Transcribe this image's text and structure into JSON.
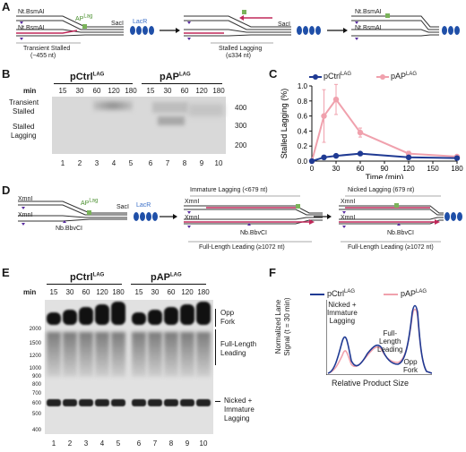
{
  "panelA": {
    "letter": "A",
    "site1": "Nt.BsmAI",
    "site2": "Nt.BsmAI",
    "ap_label": "AP",
    "ap_sup": "Lag",
    "sacI": "SacI",
    "lacR": "LacR",
    "transient": "Transient Stalled",
    "transient_size": "(~455 nt)",
    "sacI2": "SacI",
    "stalled": "Stalled Lagging",
    "stalled_size": "(≤334 nt)",
    "site3": "Nt.BsmAI",
    "site4": "Nt.BsmAI"
  },
  "panelB": {
    "letter": "B",
    "title_ctrl": "pCtrl",
    "title_ap": "pAP",
    "sup": "LAG",
    "min_label": "min",
    "times": [
      "15",
      "30",
      "60",
      "120",
      "180",
      "15",
      "30",
      "60",
      "120",
      "180"
    ],
    "lanes": [
      "1",
      "2",
      "3",
      "4",
      "5",
      "6",
      "7",
      "8",
      "9",
      "10"
    ],
    "left_labels": [
      "Transient",
      "Stalled",
      "Stalled",
      "Lagging"
    ],
    "markers": [
      "400",
      "300",
      "200"
    ]
  },
  "panelC": {
    "letter": "C",
    "legend": [
      "pCtrl",
      "pAP"
    ],
    "legend_sup": "LAG",
    "ylabel": "Stalled Lagging (%)",
    "xlabel": "Time (min)",
    "colors": {
      "ctrl": "#1f3a93",
      "ap": "#f0a1ad"
    }
  },
  "chart_data": {
    "type": "line",
    "title": "",
    "xlabel": "Time (min)",
    "ylabel": "Stalled Lagging (%)",
    "x": [
      0,
      15,
      30,
      60,
      120,
      180
    ],
    "xticks": [
      "0",
      "30",
      "60",
      "90",
      "120",
      "150",
      "180"
    ],
    "yticks": [
      "0.0",
      "0.2",
      "0.4",
      "0.6",
      "0.8",
      "1.0"
    ],
    "xlim": [
      0,
      180
    ],
    "ylim": [
      0,
      1.0
    ],
    "series": [
      {
        "name": "pCtrl",
        "values": [
          0,
          0.05,
          0.07,
          0.1,
          0.05,
          0.04
        ],
        "errors": [
          0,
          0.02,
          0.02,
          0.02,
          0.02,
          0.02
        ]
      },
      {
        "name": "pAP",
        "values": [
          0,
          0.6,
          0.82,
          0.38,
          0.1,
          0.06
        ],
        "errors": [
          0,
          0.35,
          0.2,
          0.06,
          0.03,
          0.02
        ]
      }
    ]
  },
  "panelD": {
    "letter": "D",
    "xmn1": "XmnI",
    "xmn2": "XmnI",
    "ap_label": "AP",
    "ap_sup": "Lag",
    "sacI": "SacI",
    "lacR": "LacR",
    "nb": "Nb.BbvCI",
    "immature": "Immature Lagging (<679 nt)",
    "xmn3": "XmnI",
    "xmn4": "XmnI",
    "nb2": "Nb.BbvCI",
    "full_leading": "Full-Length Leading (≥1072 nt)",
    "nicked": "Nicked Lagging (679 nt)",
    "xmn5": "XmnI",
    "xmn6": "XmnI",
    "nb3": "Nb.BbvCI",
    "full_leading2": "Full-Length Leading (≥1072 nt)"
  },
  "panelE": {
    "letter": "E",
    "title_ctrl": "pCtrl",
    "title_ap": "pAP",
    "sup": "LAG",
    "min_label": "min",
    "times": [
      "15",
      "30",
      "60",
      "120",
      "180",
      "15",
      "30",
      "60",
      "120",
      "180"
    ],
    "lanes": [
      "1",
      "2",
      "3",
      "4",
      "5",
      "6",
      "7",
      "8",
      "9",
      "10"
    ],
    "markers": [
      "2000",
      "1500",
      "1200",
      "1000",
      "900",
      "800",
      "700",
      "600",
      "500",
      "400"
    ],
    "right_labels": [
      "Opp",
      "Fork",
      "Full-Length",
      "Leading",
      "Nicked +",
      "Immature",
      "Lagging"
    ]
  },
  "panelF": {
    "letter": "F",
    "legend": [
      "pCtrl",
      "pAP"
    ],
    "legend_sup": "LAG",
    "ylabel1": "Normalized Lane",
    "ylabel2": "Signal (t = 30 min)",
    "xlabel": "Relative Product Size",
    "peak1": [
      "Nicked +",
      "Immature",
      "Lagging"
    ],
    "peak2": [
      "Full-",
      "Length",
      "Leading"
    ],
    "peak3": [
      "Opp",
      "Fork"
    ]
  }
}
